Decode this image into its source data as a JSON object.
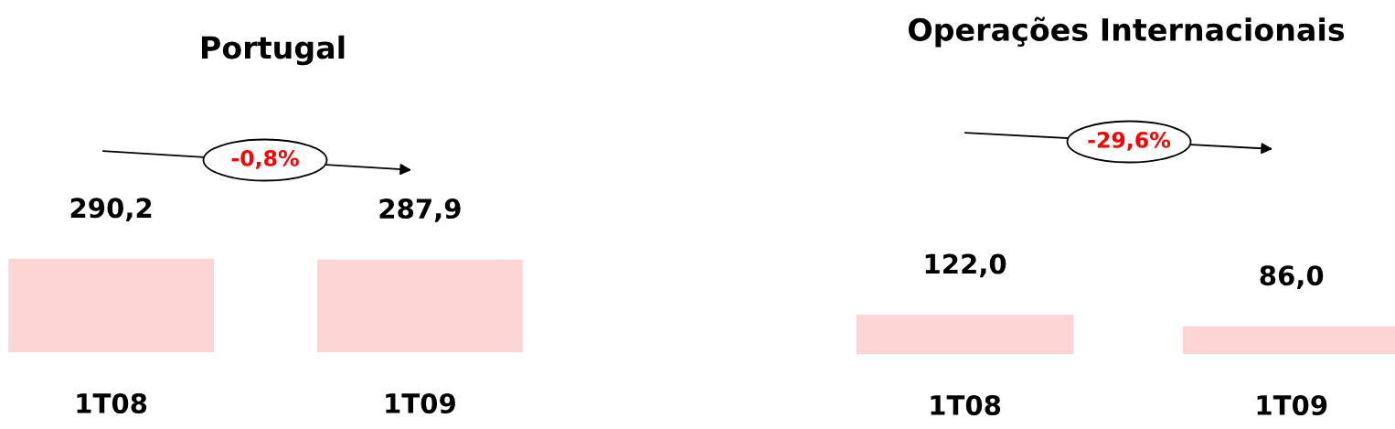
{
  "chart_data": [
    {
      "type": "bar",
      "title": "Portugal",
      "categories": [
        "1T08",
        "1T09"
      ],
      "values": [
        290.2,
        287.9
      ],
      "value_labels": [
        "290,2",
        "287,9"
      ],
      "color": "#fdd5d5",
      "annotations": [
        "-0,8%"
      ]
    },
    {
      "type": "bar",
      "title": "Operações Internacionais",
      "categories": [
        "1T08",
        "1T09"
      ],
      "values": [
        122.0,
        86.0
      ],
      "value_labels": [
        "122,0",
        "86,0"
      ],
      "color": "#fdd5d5",
      "annotations": [
        "-29,6%"
      ]
    }
  ]
}
